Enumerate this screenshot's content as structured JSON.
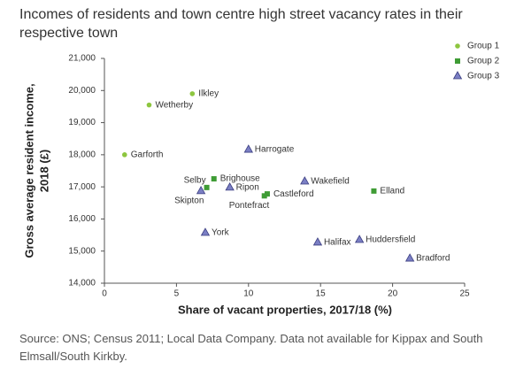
{
  "chart_data": {
    "type": "scatter",
    "title": "Incomes of residents and town centre high street vacancy rates in their respective town",
    "xlabel": "Share of vacant properties, 2017/18 (%)",
    "ylabel": [
      "Gross average resident income,",
      "2018 (£)"
    ],
    "note": "Source: ONS; Census 2011; Local Data Company. Data not available for Kippax and South Elmsall/South Kirkby.",
    "xlim": [
      0,
      25
    ],
    "xticks": [
      0,
      5,
      10,
      15,
      20,
      25
    ],
    "ylim": [
      14000,
      21000
    ],
    "yticks": [
      {
        "value": 14000,
        "label": "14,000"
      },
      {
        "value": 15000,
        "label": "15,000"
      },
      {
        "value": 16000,
        "label": "16,000"
      },
      {
        "value": 17000,
        "label": "17,000"
      },
      {
        "value": 18000,
        "label": "18,000"
      },
      {
        "value": 19000,
        "label": "19,000"
      },
      {
        "value": 20000,
        "label": "20,000"
      },
      {
        "value": 21000,
        "label": "21,000"
      }
    ],
    "legend": "top-right",
    "series": [
      {
        "name": "Group 1",
        "color": "#8dc63f",
        "marker": "circle",
        "labels": [
          "Ilkley",
          "Wetherby",
          "Garforth"
        ],
        "x": [
          6.1,
          3.1,
          1.4
        ],
        "values": [
          19900,
          19550,
          18000
        ]
      },
      {
        "name": "Group 2",
        "color": "#3f9c35",
        "marker": "square",
        "labels": [
          "Brighouse",
          "Selby",
          "Castleford",
          "Pontefract",
          "Elland"
        ],
        "x": [
          7.6,
          7.1,
          11.3,
          11.1,
          18.7
        ],
        "values": [
          17250,
          16980,
          16780,
          16720,
          16870
        ]
      },
      {
        "name": "Group 3",
        "color": "#7b7fc4",
        "marker": "triangle",
        "labels": [
          "Harrogate",
          "Wakefield",
          "Ripon",
          "Skipton",
          "York",
          "Halifax",
          "Huddersfield",
          "Bradford"
        ],
        "x": [
          10.0,
          13.9,
          8.7,
          6.7,
          7.0,
          14.8,
          17.7,
          21.2
        ],
        "values": [
          18160,
          17170,
          16980,
          16870,
          15570,
          15270,
          15350,
          14770
        ]
      }
    ]
  }
}
